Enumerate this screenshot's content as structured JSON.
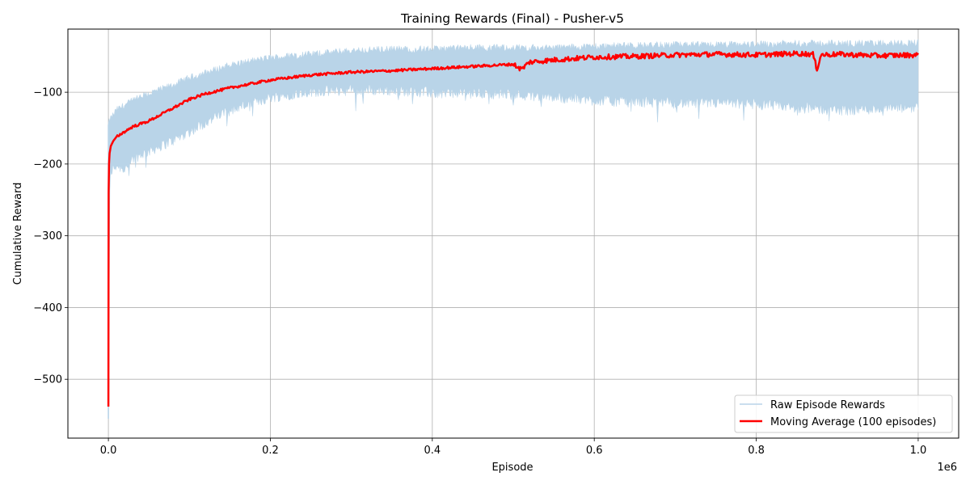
{
  "chart_data": {
    "type": "line",
    "title": "Training Rewards (Final) - Pusher-v5",
    "xlabel": "Episode",
    "ylabel": "Cumulative Reward",
    "x_offset_label": "1e6",
    "xlim": [
      -0.05,
      1.05
    ],
    "ylim": [
      -582,
      -12
    ],
    "x_ticks": [
      0.0,
      0.2,
      0.4,
      0.6,
      0.8,
      1.0
    ],
    "x_tick_labels": [
      "0.0",
      "0.2",
      "0.4",
      "0.6",
      "0.8",
      "1.0"
    ],
    "y_ticks": [
      -100,
      -200,
      -300,
      -400,
      -500
    ],
    "y_tick_labels": [
      "−100",
      "−200",
      "−300",
      "−400",
      "−500"
    ],
    "grid": true,
    "legend_position": "lower-right",
    "series": [
      {
        "name": "Raw Episode Rewards",
        "color": "#b9d4e8",
        "style": "band",
        "x": [
          0.0,
          0.002,
          0.01,
          0.02,
          0.03,
          0.05,
          0.08,
          0.1,
          0.12,
          0.15,
          0.2,
          0.25,
          0.3,
          0.35,
          0.4,
          0.45,
          0.5,
          0.55,
          0.6,
          0.65,
          0.7,
          0.75,
          0.8,
          0.85,
          0.9,
          0.95,
          1.0
        ],
        "upper": [
          -145,
          -138,
          -125,
          -118,
          -112,
          -102,
          -90,
          -80,
          -73,
          -62,
          -52,
          -47,
          -42,
          -40,
          -40,
          -38,
          -38,
          -38,
          -36,
          -35,
          -34,
          -34,
          -33,
          -32,
          -32,
          -32,
          -31
        ],
        "lower": [
          -555,
          -215,
          -205,
          -210,
          -195,
          -185,
          -170,
          -158,
          -145,
          -128,
          -110,
          -102,
          -100,
          -100,
          -104,
          -104,
          -106,
          -110,
          -114,
          -116,
          -118,
          -118,
          -120,
          -124,
          -128,
          -126,
          -124
        ]
      },
      {
        "name": "Moving Average (100 episodes)",
        "color": "#ff0000",
        "style": "line",
        "x": [
          0.0,
          0.0003,
          0.0008,
          0.0015,
          0.003,
          0.006,
          0.01,
          0.02,
          0.03,
          0.05,
          0.08,
          0.1,
          0.12,
          0.15,
          0.2,
          0.25,
          0.3,
          0.35,
          0.4,
          0.45,
          0.5,
          0.51,
          0.52,
          0.55,
          0.6,
          0.65,
          0.7,
          0.75,
          0.8,
          0.85,
          0.87,
          0.875,
          0.88,
          0.9,
          0.95,
          1.0
        ],
        "y": [
          -538,
          -240,
          -200,
          -185,
          -175,
          -168,
          -162,
          -155,
          -148,
          -140,
          -122,
          -110,
          -102,
          -94,
          -83,
          -76,
          -72,
          -70,
          -67,
          -64,
          -61,
          -68,
          -58,
          -55,
          -51,
          -50,
          -48,
          -47,
          -48,
          -46,
          -47,
          -68,
          -48,
          -47,
          -49,
          -48
        ]
      }
    ]
  }
}
